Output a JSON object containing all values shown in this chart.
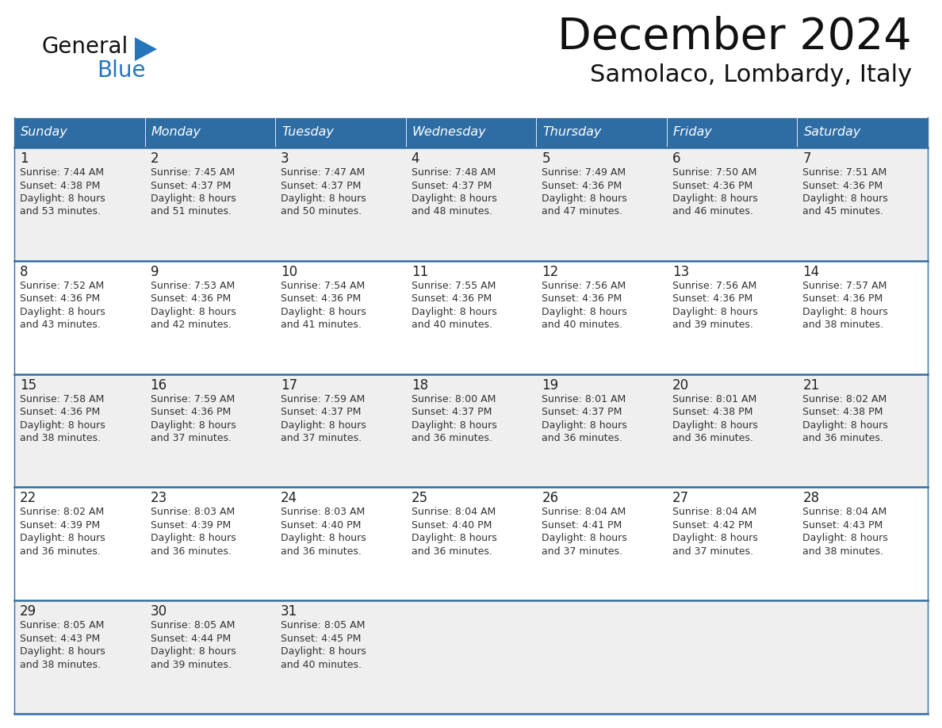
{
  "title": "December 2024",
  "subtitle": "Samolaco, Lombardy, Italy",
  "header_color": "#2E6DA4",
  "header_text_color": "#FFFFFF",
  "day_names": [
    "Sunday",
    "Monday",
    "Tuesday",
    "Wednesday",
    "Thursday",
    "Friday",
    "Saturday"
  ],
  "background_color": "#FFFFFF",
  "cell_bg_even": "#EFEFEF",
  "cell_bg_odd": "#FFFFFF",
  "border_color": "#2E6DA4",
  "day_num_color": "#222222",
  "text_color": "#333333",
  "logo_general_color": "#111111",
  "logo_blue_color": "#2575BB",
  "calendar_data": [
    [
      {
        "day": "1",
        "sunrise": "7:44 AM",
        "sunset": "4:38 PM",
        "daylight_line1": "8 hours",
        "daylight_line2": "and 53 minutes."
      },
      {
        "day": "2",
        "sunrise": "7:45 AM",
        "sunset": "4:37 PM",
        "daylight_line1": "8 hours",
        "daylight_line2": "and 51 minutes."
      },
      {
        "day": "3",
        "sunrise": "7:47 AM",
        "sunset": "4:37 PM",
        "daylight_line1": "8 hours",
        "daylight_line2": "and 50 minutes."
      },
      {
        "day": "4",
        "sunrise": "7:48 AM",
        "sunset": "4:37 PM",
        "daylight_line1": "8 hours",
        "daylight_line2": "and 48 minutes."
      },
      {
        "day": "5",
        "sunrise": "7:49 AM",
        "sunset": "4:36 PM",
        "daylight_line1": "8 hours",
        "daylight_line2": "and 47 minutes."
      },
      {
        "day": "6",
        "sunrise": "7:50 AM",
        "sunset": "4:36 PM",
        "daylight_line1": "8 hours",
        "daylight_line2": "and 46 minutes."
      },
      {
        "day": "7",
        "sunrise": "7:51 AM",
        "sunset": "4:36 PM",
        "daylight_line1": "8 hours",
        "daylight_line2": "and 45 minutes."
      }
    ],
    [
      {
        "day": "8",
        "sunrise": "7:52 AM",
        "sunset": "4:36 PM",
        "daylight_line1": "8 hours",
        "daylight_line2": "and 43 minutes."
      },
      {
        "day": "9",
        "sunrise": "7:53 AM",
        "sunset": "4:36 PM",
        "daylight_line1": "8 hours",
        "daylight_line2": "and 42 minutes."
      },
      {
        "day": "10",
        "sunrise": "7:54 AM",
        "sunset": "4:36 PM",
        "daylight_line1": "8 hours",
        "daylight_line2": "and 41 minutes."
      },
      {
        "day": "11",
        "sunrise": "7:55 AM",
        "sunset": "4:36 PM",
        "daylight_line1": "8 hours",
        "daylight_line2": "and 40 minutes."
      },
      {
        "day": "12",
        "sunrise": "7:56 AM",
        "sunset": "4:36 PM",
        "daylight_line1": "8 hours",
        "daylight_line2": "and 40 minutes."
      },
      {
        "day": "13",
        "sunrise": "7:56 AM",
        "sunset": "4:36 PM",
        "daylight_line1": "8 hours",
        "daylight_line2": "and 39 minutes."
      },
      {
        "day": "14",
        "sunrise": "7:57 AM",
        "sunset": "4:36 PM",
        "daylight_line1": "8 hours",
        "daylight_line2": "and 38 minutes."
      }
    ],
    [
      {
        "day": "15",
        "sunrise": "7:58 AM",
        "sunset": "4:36 PM",
        "daylight_line1": "8 hours",
        "daylight_line2": "and 38 minutes."
      },
      {
        "day": "16",
        "sunrise": "7:59 AM",
        "sunset": "4:36 PM",
        "daylight_line1": "8 hours",
        "daylight_line2": "and 37 minutes."
      },
      {
        "day": "17",
        "sunrise": "7:59 AM",
        "sunset": "4:37 PM",
        "daylight_line1": "8 hours",
        "daylight_line2": "and 37 minutes."
      },
      {
        "day": "18",
        "sunrise": "8:00 AM",
        "sunset": "4:37 PM",
        "daylight_line1": "8 hours",
        "daylight_line2": "and 36 minutes."
      },
      {
        "day": "19",
        "sunrise": "8:01 AM",
        "sunset": "4:37 PM",
        "daylight_line1": "8 hours",
        "daylight_line2": "and 36 minutes."
      },
      {
        "day": "20",
        "sunrise": "8:01 AM",
        "sunset": "4:38 PM",
        "daylight_line1": "8 hours",
        "daylight_line2": "and 36 minutes."
      },
      {
        "day": "21",
        "sunrise": "8:02 AM",
        "sunset": "4:38 PM",
        "daylight_line1": "8 hours",
        "daylight_line2": "and 36 minutes."
      }
    ],
    [
      {
        "day": "22",
        "sunrise": "8:02 AM",
        "sunset": "4:39 PM",
        "daylight_line1": "8 hours",
        "daylight_line2": "and 36 minutes."
      },
      {
        "day": "23",
        "sunrise": "8:03 AM",
        "sunset": "4:39 PM",
        "daylight_line1": "8 hours",
        "daylight_line2": "and 36 minutes."
      },
      {
        "day": "24",
        "sunrise": "8:03 AM",
        "sunset": "4:40 PM",
        "daylight_line1": "8 hours",
        "daylight_line2": "and 36 minutes."
      },
      {
        "day": "25",
        "sunrise": "8:04 AM",
        "sunset": "4:40 PM",
        "daylight_line1": "8 hours",
        "daylight_line2": "and 36 minutes."
      },
      {
        "day": "26",
        "sunrise": "8:04 AM",
        "sunset": "4:41 PM",
        "daylight_line1": "8 hours",
        "daylight_line2": "and 37 minutes."
      },
      {
        "day": "27",
        "sunrise": "8:04 AM",
        "sunset": "4:42 PM",
        "daylight_line1": "8 hours",
        "daylight_line2": "and 37 minutes."
      },
      {
        "day": "28",
        "sunrise": "8:04 AM",
        "sunset": "4:43 PM",
        "daylight_line1": "8 hours",
        "daylight_line2": "and 38 minutes."
      }
    ],
    [
      {
        "day": "29",
        "sunrise": "8:05 AM",
        "sunset": "4:43 PM",
        "daylight_line1": "8 hours",
        "daylight_line2": "and 38 minutes."
      },
      {
        "day": "30",
        "sunrise": "8:05 AM",
        "sunset": "4:44 PM",
        "daylight_line1": "8 hours",
        "daylight_line2": "and 39 minutes."
      },
      {
        "day": "31",
        "sunrise": "8:05 AM",
        "sunset": "4:45 PM",
        "daylight_line1": "8 hours",
        "daylight_line2": "and 40 minutes."
      },
      null,
      null,
      null,
      null
    ]
  ]
}
